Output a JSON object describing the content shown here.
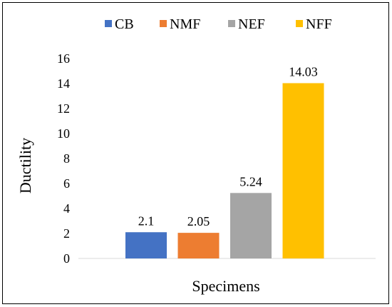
{
  "chart_data": {
    "type": "bar",
    "title": "",
    "xlabel": "Specimens",
    "ylabel": "Ductility",
    "ylim": [
      0,
      16
    ],
    "yticks": [
      "0",
      "2",
      "4",
      "6",
      "8",
      "10",
      "12",
      "14",
      "16"
    ],
    "grid": false,
    "legend_position": "top",
    "series": [
      {
        "name": "CB",
        "value": 2.1,
        "label": "2.1",
        "color": "#4472C4"
      },
      {
        "name": "NMF",
        "value": 2.05,
        "label": "2.05",
        "color": "#ED7D31"
      },
      {
        "name": "NEF",
        "value": 5.24,
        "label": "5.24",
        "color": "#A5A5A5"
      },
      {
        "name": "NFF",
        "value": 14.03,
        "label": "14.03",
        "color": "#FFC000"
      }
    ]
  }
}
